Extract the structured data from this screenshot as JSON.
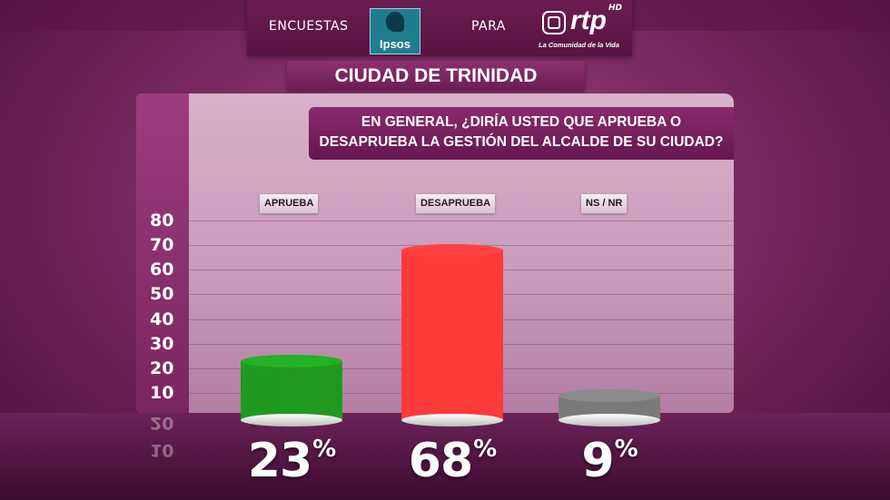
{
  "header": {
    "encuestas_label": "ENCUESTAS",
    "ipsos_logo_text": "Ipsos",
    "para_label": "PARA",
    "rtp_logo_text": "rtp",
    "rtp_hd": "HD",
    "rtp_tagline": "La Comunidad de la Vida"
  },
  "city_title": "CIUDAD DE TRINIDAD",
  "question": {
    "line1": "EN GENERAL, ¿DIRÍA USTED QUE APRUEBA O",
    "line2": "DESAPRUEBA LA GESTIÓN DEL ALCALDE DE SU CIUDAD?"
  },
  "chart_data": {
    "type": "bar",
    "categories": [
      "APRUEBA",
      "DESAPRUEBA",
      "NS / NR"
    ],
    "values": [
      23,
      68,
      9
    ],
    "value_labels": [
      "23",
      "68",
      "9"
    ],
    "value_suffix": "%",
    "yticks": [
      "80",
      "70",
      "60",
      "50",
      "40",
      "30",
      "20",
      "10"
    ],
    "ylim": [
      0,
      80
    ],
    "grid": true,
    "colors": [
      "#1f9a1f",
      "#ff3a3a",
      "#7a7a7a"
    ]
  }
}
